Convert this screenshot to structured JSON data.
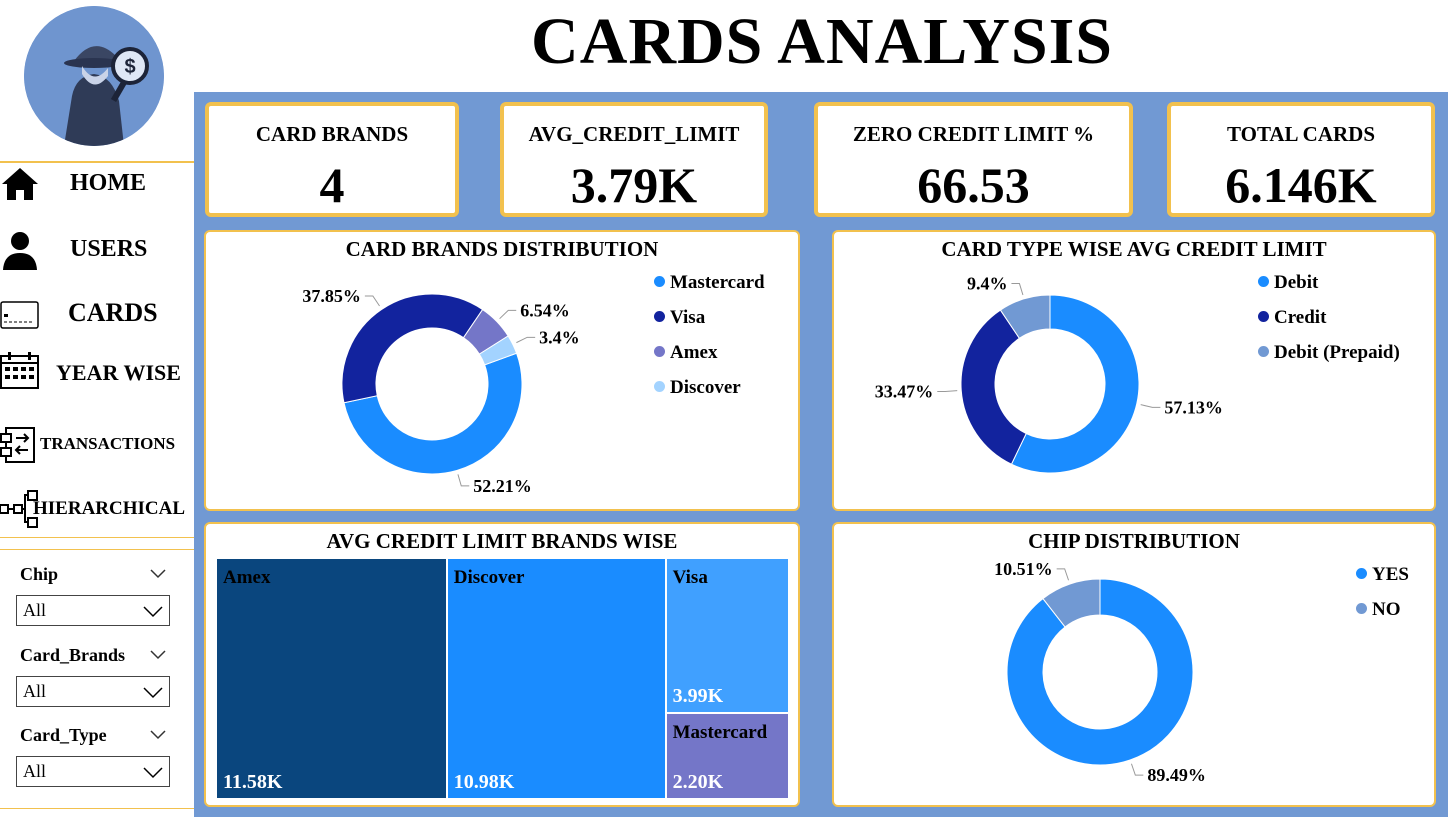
{
  "title": "CARDS ANALYSIS",
  "nav": [
    {
      "label": "HOME",
      "icon": "home-icon"
    },
    {
      "label": "USERS",
      "icon": "user-icon"
    },
    {
      "label": "CARDS",
      "icon": "card-icon"
    },
    {
      "label": "YEAR WISE",
      "icon": "calendar-icon"
    },
    {
      "label": "TRANSACTIONS",
      "icon": "transactions-icon"
    },
    {
      "label": "HIERARCHICAL",
      "icon": "hierarchy-icon"
    }
  ],
  "filters": [
    {
      "label": "Chip",
      "value": "All"
    },
    {
      "label": "Card_Brands",
      "value": "All"
    },
    {
      "label": "Card_Type",
      "value": "All"
    }
  ],
  "kpis": [
    {
      "title": "CARD BRANDS",
      "value": "4"
    },
    {
      "title": "AVG_CREDIT_LIMIT",
      "value": "3.79K"
    },
    {
      "title": "ZERO CREDIT LIMIT %",
      "value": "66.53"
    },
    {
      "title": "TOTAL CARDS",
      "value": "6.146K"
    }
  ],
  "colors": {
    "accent_border": "#f2c14e",
    "background": "#7199d3",
    "blue": "#1a8cff",
    "navy": "#12239e",
    "purple": "#7476c8",
    "light_blue": "#a3d3ff",
    "steel": "#7199d3",
    "dark_blue": "#0a467e"
  },
  "chart_data": [
    {
      "type": "pie",
      "title": "CARD BRANDS DISTRIBUTION",
      "categories": [
        "Mastercard",
        "Visa",
        "Amex",
        "Discover"
      ],
      "values": [
        52.21,
        37.85,
        6.54,
        3.4
      ],
      "labels": [
        "52.21%",
        "37.85%",
        "6.54%",
        "3.4%"
      ],
      "colors": [
        "#1a8cff",
        "#12239e",
        "#7476c8",
        "#a3d3ff"
      ],
      "legend": "right"
    },
    {
      "type": "pie",
      "title": "CARD TYPE WISE AVG CREDIT LIMIT",
      "categories": [
        "Debit",
        "Credit",
        "Debit (Prepaid)"
      ],
      "values": [
        57.13,
        33.47,
        9.4
      ],
      "labels": [
        "57.13%",
        "33.47%",
        "9.4%"
      ],
      "colors": [
        "#1a8cff",
        "#12239e",
        "#7199d3"
      ],
      "legend": "right"
    },
    {
      "type": "table",
      "title": "AVG CREDIT LIMIT BRANDS WISE",
      "categories": [
        "Amex",
        "Discover",
        "Visa",
        "Mastercard"
      ],
      "values": [
        11.58,
        10.98,
        3.99,
        2.2
      ],
      "labels": [
        "11.58K",
        "10.98K",
        "3.99K",
        "2.20K"
      ],
      "colors": [
        "#0a467e",
        "#1a8cff",
        "#40a0ff",
        "#7476c8"
      ]
    },
    {
      "type": "pie",
      "title": "CHIP DISTRIBUTION",
      "categories": [
        "YES",
        "NO"
      ],
      "values": [
        89.49,
        10.51
      ],
      "labels": [
        "89.49%",
        "10.51%"
      ],
      "colors": [
        "#1a8cff",
        "#7199d3"
      ],
      "legend": "right"
    }
  ]
}
